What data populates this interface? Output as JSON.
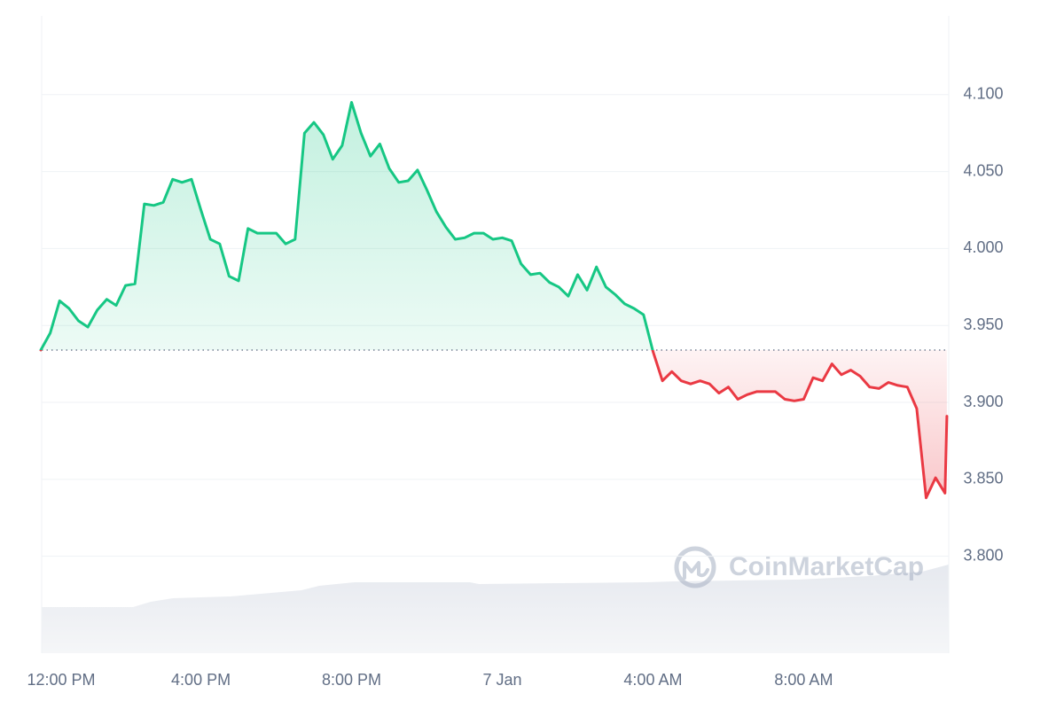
{
  "chart_data": {
    "type": "line",
    "watermark": "CoinMarketCap",
    "up_color": "#16c784",
    "down_color": "#ea3943",
    "grid": true,
    "xlim": [
      -0.25,
      23.85
    ],
    "ylim": [
      3.737,
      4.15
    ],
    "xticks": [
      {
        "value": 0,
        "label": "12:00 PM"
      },
      {
        "value": 4,
        "label": "4:00 PM"
      },
      {
        "value": 8,
        "label": "8:00 PM"
      },
      {
        "value": 12,
        "label": "7 Jan"
      },
      {
        "value": 16,
        "label": "4:00 AM"
      },
      {
        "value": 20,
        "label": "8:00 AM"
      }
    ],
    "yticks": [
      {
        "value": 3.8,
        "label": "3.800"
      },
      {
        "value": 3.85,
        "label": "3.850"
      },
      {
        "value": 3.9,
        "label": "3.900"
      },
      {
        "value": 3.95,
        "label": "3.950"
      },
      {
        "value": 4.0,
        "label": "4.000"
      },
      {
        "value": 4.05,
        "label": "4.050"
      },
      {
        "value": 4.1,
        "label": "4.100"
      }
    ],
    "x": [
      -0.25,
      0,
      0.25,
      0.5,
      0.75,
      1,
      1.25,
      1.5,
      1.75,
      2,
      2.25,
      2.5,
      2.75,
      3,
      3.25,
      3.5,
      3.75,
      4,
      4.25,
      4.5,
      4.75,
      5,
      5.25,
      5.5,
      5.75,
      6,
      6.25,
      6.5,
      6.75,
      7,
      7.25,
      7.5,
      7.75,
      8,
      8.25,
      8.5,
      8.75,
      9,
      9.25,
      9.5,
      9.75,
      10,
      10.25,
      10.5,
      10.75,
      11,
      11.25,
      11.5,
      11.75,
      12,
      12.25,
      12.5,
      12.75,
      13,
      13.25,
      13.5,
      13.75,
      14,
      14.25,
      14.5,
      14.75,
      15,
      15.25,
      15.5,
      15.75,
      16,
      16.25,
      16.5,
      16.75,
      17,
      17.25,
      17.5,
      17.75,
      18,
      18.25,
      18.5,
      18.75,
      19,
      19.25,
      19.5,
      19.75,
      20,
      20.25,
      20.5,
      20.75,
      21,
      21.25,
      21.5,
      21.75,
      22,
      22.25,
      22.5,
      22.75,
      23,
      23.25,
      23.5,
      23.75,
      23.8
    ],
    "values": [
      3.934,
      3.945,
      3.966,
      3.961,
      3.953,
      3.949,
      3.96,
      3.967,
      3.963,
      3.976,
      3.977,
      4.029,
      4.028,
      4.03,
      4.045,
      4.043,
      4.045,
      4.025,
      4.006,
      4.003,
      3.982,
      3.979,
      4.013,
      4.01,
      4.01,
      4.01,
      4.003,
      4.006,
      4.075,
      4.082,
      4.074,
      4.058,
      4.067,
      4.095,
      4.075,
      4.06,
      4.068,
      4.052,
      4.043,
      4.044,
      4.051,
      4.038,
      4.024,
      4.014,
      4.006,
      4.007,
      4.01,
      4.01,
      4.006,
      4.007,
      4.005,
      3.99,
      3.983,
      3.984,
      3.978,
      3.975,
      3.969,
      3.983,
      3.973,
      3.988,
      3.975,
      3.97,
      3.964,
      3.961,
      3.957,
      3.933,
      3.914,
      3.92,
      3.914,
      3.912,
      3.914,
      3.912,
      3.906,
      3.91,
      3.902,
      3.905,
      3.907,
      3.907,
      3.907,
      3.902,
      3.901,
      3.902,
      3.916,
      3.914,
      3.925,
      3.918,
      3.921,
      3.917,
      3.91,
      3.909,
      3.913,
      3.911,
      3.91,
      3.896,
      3.838,
      3.851,
      3.841,
      3.891
    ]
  }
}
